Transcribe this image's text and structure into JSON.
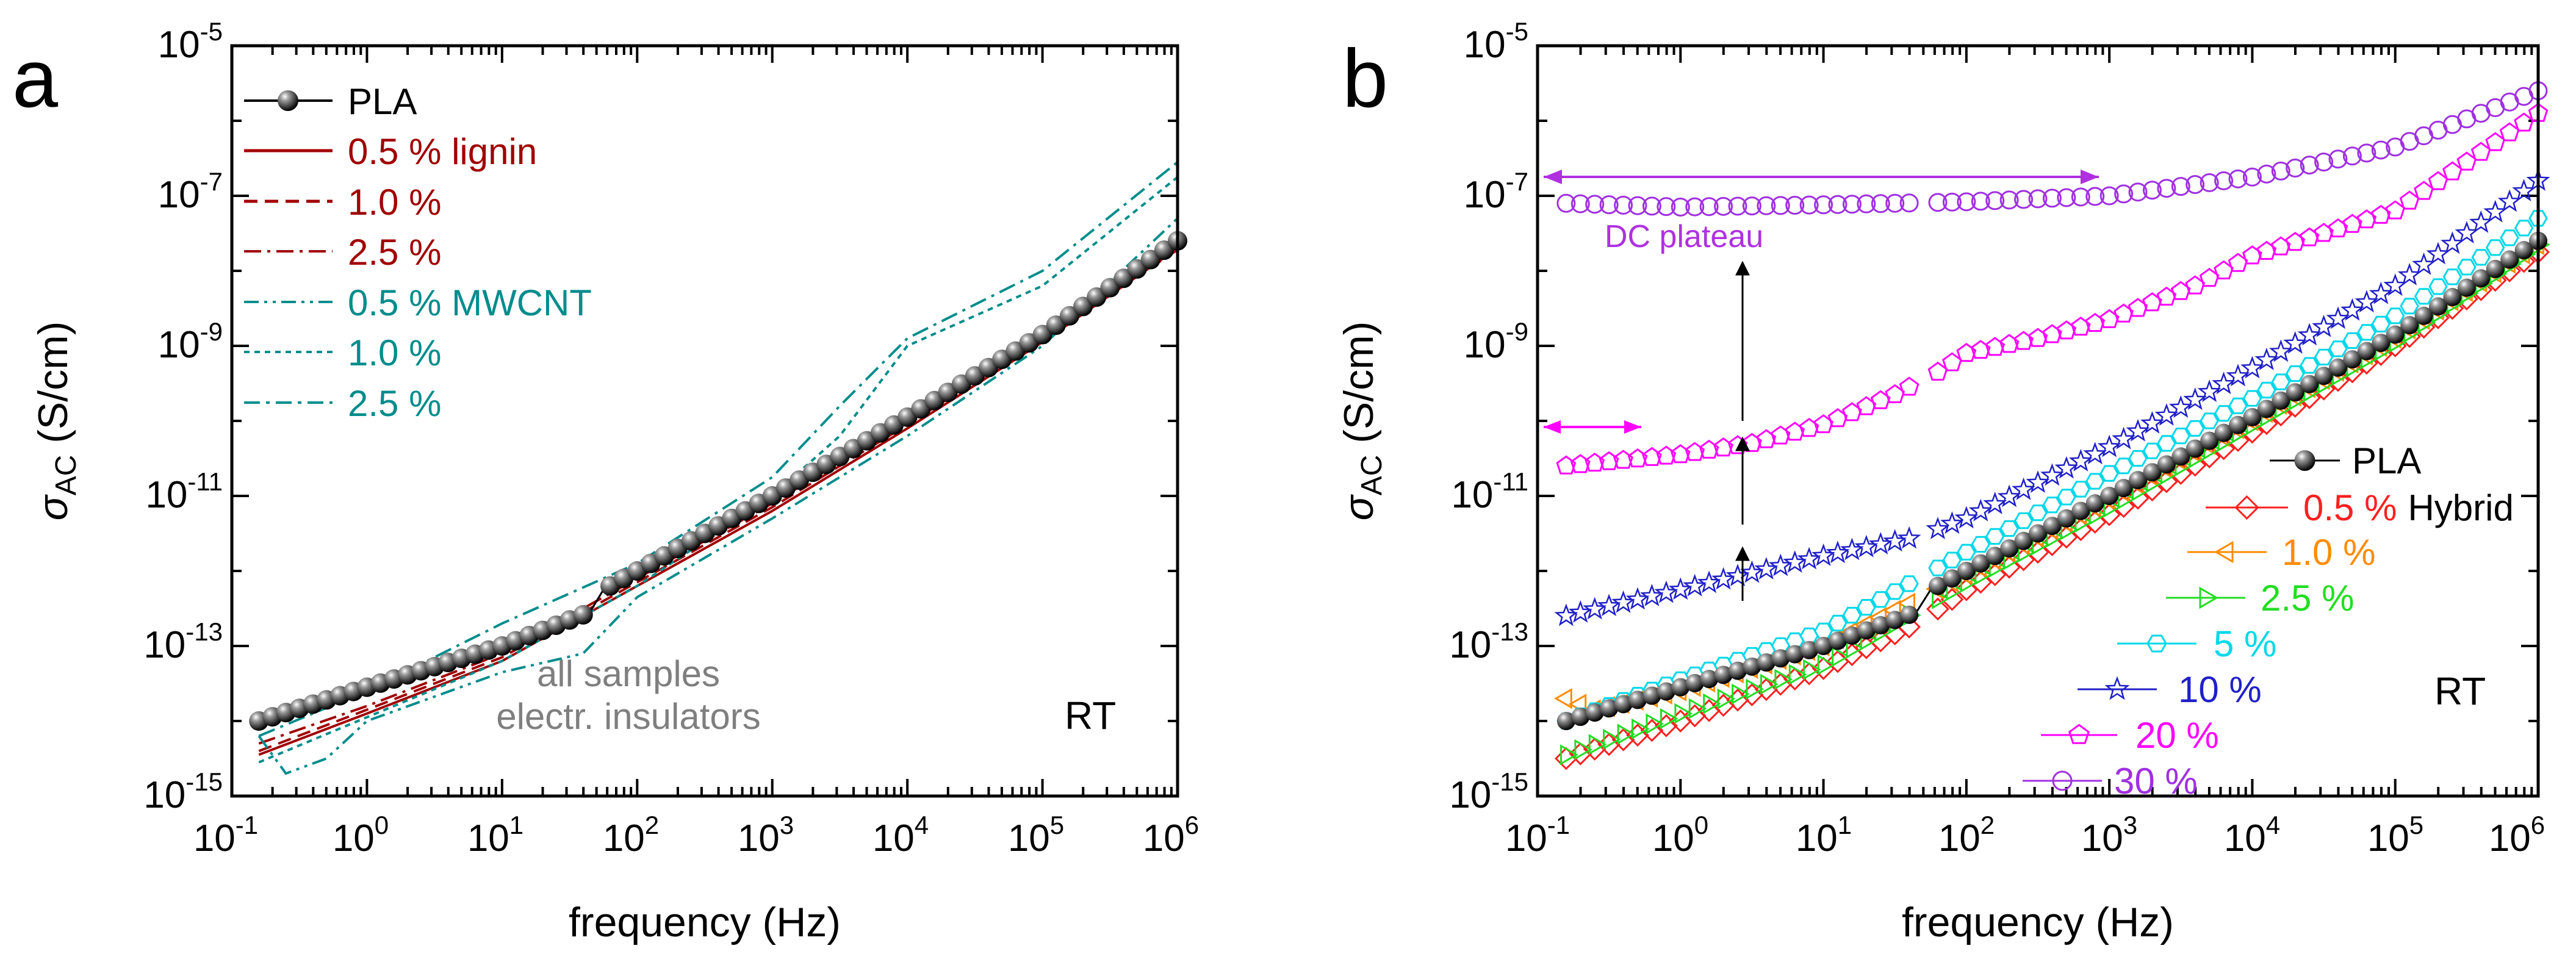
{
  "chart_data": [
    {
      "type": "line",
      "panel_label": "a",
      "xlabel": "frequency (Hz)",
      "ylabel": "σAC (S/cm)",
      "xscale": "log",
      "yscale": "log",
      "xlim_log10": [
        -1,
        6
      ],
      "ylim_log10": [
        -15,
        -5
      ],
      "x_ticks": [
        {
          "base": "10",
          "exp": "-1"
        },
        {
          "base": "10",
          "exp": "0"
        },
        {
          "base": "10",
          "exp": "1"
        },
        {
          "base": "10",
          "exp": "2"
        },
        {
          "base": "10",
          "exp": "3"
        },
        {
          "base": "10",
          "exp": "4"
        },
        {
          "base": "10",
          "exp": "5"
        },
        {
          "base": "10",
          "exp": "6"
        }
      ],
      "y_ticks": [
        {
          "base": "10",
          "exp": "-15"
        },
        {
          "base": "10",
          "exp": "-13"
        },
        {
          "base": "10",
          "exp": "-11"
        },
        {
          "base": "10",
          "exp": "-9"
        },
        {
          "base": "10",
          "exp": "-7"
        },
        {
          "base": "10",
          "exp": "-5"
        }
      ],
      "annotations": {
        "insulators_line1": "all samples",
        "insulators_line2": "electr. insulators",
        "temperature": "RT"
      },
      "legend_position": "top-left",
      "series": [
        {
          "name": "PLA",
          "color": "#000000",
          "marker": "ball",
          "line": "solid",
          "points_log10": [
            [
              -0.8,
              -14.0
            ],
            [
              0,
              -13.55
            ],
            [
              1,
              -13.0
            ],
            [
              1.65,
              -12.55
            ],
            [
              1.75,
              -12.25
            ],
            [
              2,
              -12.0
            ],
            [
              3,
              -11.0
            ],
            [
              4,
              -9.95
            ],
            [
              5,
              -8.85
            ],
            [
              6,
              -7.6
            ]
          ]
        },
        {
          "name": "0.5 % lignin",
          "color": "#A00000",
          "line": "solid",
          "points_log10": [
            [
              -0.8,
              -14.45
            ],
            [
              0,
              -13.9
            ],
            [
              1,
              -13.2
            ],
            [
              2,
              -12.2
            ],
            [
              3,
              -11.2
            ],
            [
              4,
              -10.1
            ],
            [
              5,
              -8.95
            ],
            [
              6,
              -7.7
            ]
          ]
        },
        {
          "name": "1.0 %",
          "color": "#A00000",
          "line": "dashed",
          "points_log10": [
            [
              -0.8,
              -14.4
            ],
            [
              0,
              -13.85
            ],
            [
              1,
              -13.15
            ],
            [
              2,
              -12.15
            ],
            [
              3,
              -11.15
            ],
            [
              4,
              -10.05
            ],
            [
              5,
              -8.9
            ],
            [
              6,
              -7.72
            ]
          ]
        },
        {
          "name": "2.5 %",
          "color": "#A00000",
          "line": "dashdot",
          "points_log10": [
            [
              -0.8,
              -14.3
            ],
            [
              0,
              -13.8
            ],
            [
              1,
              -13.1
            ],
            [
              2,
              -12.1
            ],
            [
              3,
              -11.1
            ],
            [
              4,
              -10.0
            ],
            [
              5,
              -8.9
            ],
            [
              6,
              -7.68
            ]
          ]
        },
        {
          "name": "0.5 % MWCNT",
          "color": "#008C8C",
          "line": "dashdotdot",
          "points_log10": [
            [
              -0.8,
              -14.2
            ],
            [
              -0.6,
              -14.7
            ],
            [
              -0.3,
              -14.5
            ],
            [
              0,
              -14.0
            ],
            [
              1,
              -13.35
            ],
            [
              1.6,
              -13.1
            ],
            [
              2,
              -12.35
            ],
            [
              3,
              -11.3
            ],
            [
              4,
              -10.2
            ],
            [
              5,
              -9.0
            ],
            [
              6,
              -7.3
            ]
          ]
        },
        {
          "name": "1.0 %",
          "color": "#008C8C",
          "line": "dotted",
          "points_log10": [
            [
              -0.8,
              -14.55
            ],
            [
              0,
              -13.95
            ],
            [
              1,
              -13.2
            ],
            [
              2,
              -12.2
            ],
            [
              3,
              -11.0
            ],
            [
              3.5,
              -10.2
            ],
            [
              4,
              -9.0
            ],
            [
              5,
              -8.2
            ],
            [
              6,
              -6.75
            ]
          ]
        },
        {
          "name": "2.5 %",
          "color": "#008C8C",
          "line": "dashdot",
          "points_log10": [
            [
              -0.8,
              -14.2
            ],
            [
              0,
              -13.6
            ],
            [
              1,
              -12.7
            ],
            [
              2,
              -11.9
            ],
            [
              3,
              -10.75
            ],
            [
              3.5,
              -9.8
            ],
            [
              4,
              -8.9
            ],
            [
              5,
              -8.0
            ],
            [
              6,
              -6.55
            ]
          ]
        }
      ]
    },
    {
      "type": "scatter",
      "panel_label": "b",
      "xlabel": "frequency (Hz)",
      "ylabel": "σAC (S/cm)",
      "xscale": "log",
      "yscale": "log",
      "xlim_log10": [
        -1,
        6
      ],
      "ylim_log10": [
        -15,
        -5
      ],
      "x_ticks": [
        {
          "base": "10",
          "exp": "-1"
        },
        {
          "base": "10",
          "exp": "0"
        },
        {
          "base": "10",
          "exp": "1"
        },
        {
          "base": "10",
          "exp": "2"
        },
        {
          "base": "10",
          "exp": "3"
        },
        {
          "base": "10",
          "exp": "4"
        },
        {
          "base": "10",
          "exp": "5"
        },
        {
          "base": "10",
          "exp": "6"
        }
      ],
      "y_ticks": [
        {
          "base": "10",
          "exp": "-15"
        },
        {
          "base": "10",
          "exp": "-13"
        },
        {
          "base": "10",
          "exp": "-11"
        },
        {
          "base": "10",
          "exp": "-9"
        },
        {
          "base": "10",
          "exp": "-7"
        },
        {
          "base": "10",
          "exp": "-5"
        }
      ],
      "annotations": {
        "dc_plateau": "DC plateau",
        "temperature": "RT",
        "hybrid_suffix": "Hybrid"
      },
      "legend_position": "bottom-right",
      "series": [
        {
          "name": "PLA",
          "color": "#000000",
          "marker": "ball",
          "points_log10": [
            [
              -0.8,
              -14.0
            ],
            [
              0,
              -13.55
            ],
            [
              1,
              -13.0
            ],
            [
              1.65,
              -12.55
            ],
            [
              1.75,
              -12.25
            ],
            [
              2,
              -12.0
            ],
            [
              3,
              -11.0
            ],
            [
              4,
              -9.95
            ],
            [
              5,
              -8.85
            ],
            [
              6,
              -7.6
            ]
          ]
        },
        {
          "name": "0.5 %",
          "color": "#FF2020",
          "marker": "diamond",
          "points_log10": [
            [
              -0.8,
              -14.5
            ],
            [
              0,
              -14.0
            ],
            [
              1,
              -13.3
            ],
            [
              1.65,
              -12.7
            ],
            [
              2,
              -12.25
            ],
            [
              3,
              -11.25
            ],
            [
              4,
              -10.15
            ],
            [
              5,
              -9.0
            ],
            [
              6,
              -7.75
            ]
          ]
        },
        {
          "name": "1.0 %",
          "color": "#FF8C00",
          "marker": "triangle-left",
          "points_log10": [
            [
              -0.8,
              -13.7
            ],
            [
              -0.6,
              -13.85
            ],
            [
              0,
              -13.6
            ],
            [
              1,
              -13.0
            ],
            [
              2,
              -12.05
            ],
            [
              3,
              -11.05
            ],
            [
              4,
              -10.0
            ],
            [
              5,
              -8.9
            ],
            [
              6,
              -7.65
            ]
          ]
        },
        {
          "name": "2.5 %",
          "color": "#22DD22",
          "marker": "triangle-right",
          "points_log10": [
            [
              -0.8,
              -14.45
            ],
            [
              0,
              -13.9
            ],
            [
              1,
              -13.25
            ],
            [
              2,
              -12.15
            ],
            [
              3,
              -11.15
            ],
            [
              4,
              -10.05
            ],
            [
              5,
              -8.95
            ],
            [
              6,
              -7.65
            ]
          ]
        },
        {
          "name": "5 %",
          "color": "#00D8E8",
          "marker": "hexagon",
          "points_log10": [
            [
              -0.8,
              -14.0
            ],
            [
              0,
              -13.45
            ],
            [
              1,
              -12.8
            ],
            [
              2,
              -11.75
            ],
            [
              3,
              -10.7
            ],
            [
              4,
              -9.7
            ],
            [
              5,
              -8.6
            ],
            [
              6,
              -7.3
            ]
          ]
        },
        {
          "name": "10 %",
          "color": "#2020C8",
          "marker": "star",
          "points_log10": [
            [
              -0.8,
              -12.6
            ],
            [
              0,
              -12.25
            ],
            [
              1,
              -11.8
            ],
            [
              1.65,
              -11.55
            ],
            [
              2,
              -11.3
            ],
            [
              3,
              -10.35
            ],
            [
              4,
              -9.3
            ],
            [
              5,
              -8.2
            ],
            [
              6,
              -6.8
            ]
          ]
        },
        {
          "name": "20 %",
          "color": "#FF00FF",
          "marker": "pentagon",
          "points_log10": [
            [
              -0.8,
              -10.6
            ],
            [
              0,
              -10.45
            ],
            [
              0.5,
              -10.3
            ],
            [
              1,
              -10.05
            ],
            [
              1.5,
              -9.65
            ],
            [
              1.8,
              -9.35
            ],
            [
              2,
              -9.1
            ],
            [
              2.5,
              -8.9
            ],
            [
              3,
              -8.65
            ],
            [
              3.6,
              -8.2
            ],
            [
              4,
              -7.8
            ],
            [
              5,
              -7.2
            ],
            [
              6,
              -5.9
            ]
          ]
        },
        {
          "name": "30 %",
          "color": "#A030E0",
          "marker": "circle",
          "points_log10": [
            [
              -0.8,
              -7.1
            ],
            [
              0,
              -7.15
            ],
            [
              1,
              -7.12
            ],
            [
              2,
              -7.08
            ],
            [
              3,
              -7.0
            ],
            [
              4,
              -6.75
            ],
            [
              5,
              -6.35
            ],
            [
              6,
              -5.6
            ]
          ]
        }
      ]
    }
  ]
}
